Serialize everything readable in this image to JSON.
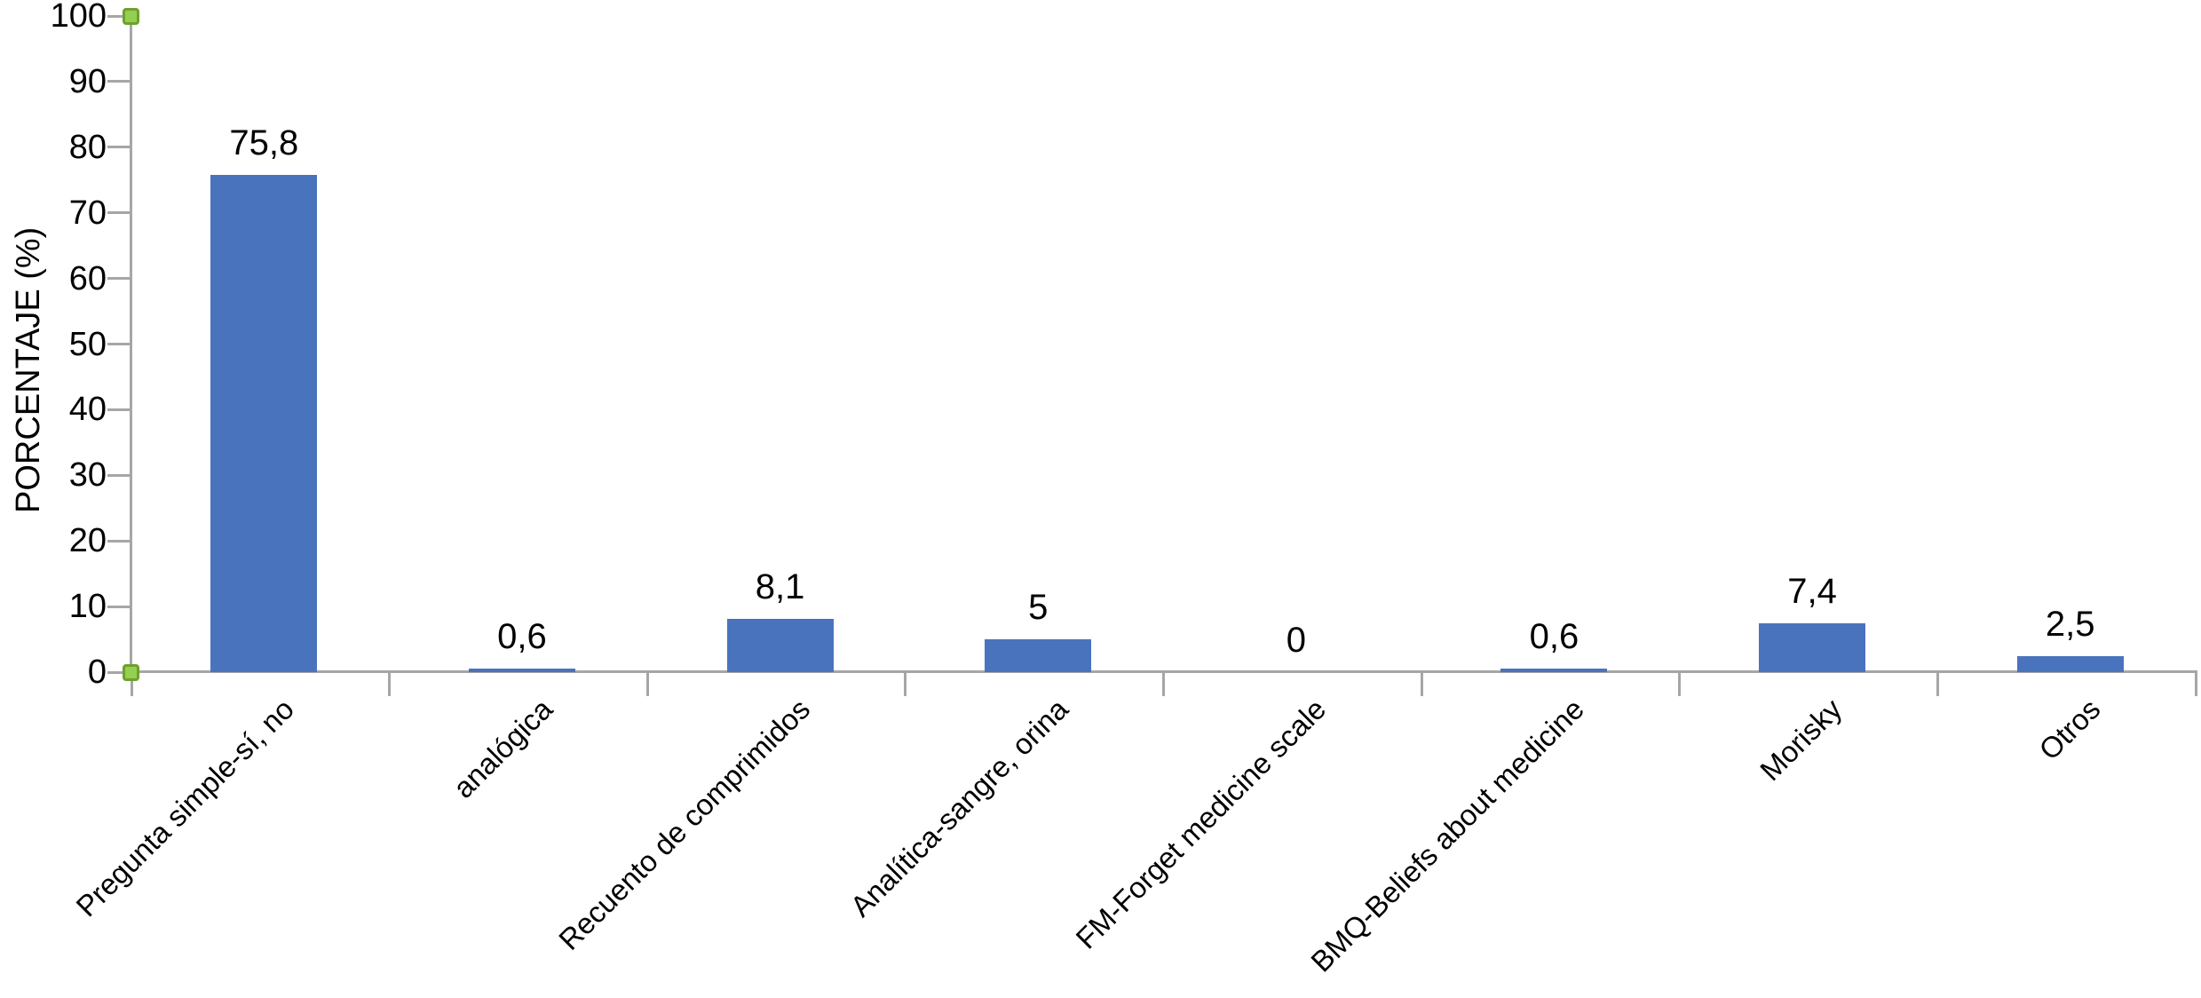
{
  "chart_data": {
    "type": "bar",
    "title": "",
    "xlabel": "",
    "ylabel": "PORCENTAJE (%)",
    "categories": [
      "Pregunta simple-sí, no",
      "analógica",
      "Recuento de comprimidos",
      "Analítica-sangre, orina",
      "FM-Forget medicine scale",
      "BMQ-Beliefs about medicine",
      "Morisky",
      "Otros"
    ],
    "values": [
      75.8,
      0.6,
      8.1,
      5,
      0,
      0.6,
      7.4,
      2.5
    ],
    "value_labels": [
      "75,8",
      "0,6",
      "8,1",
      "5",
      "0",
      "0,6",
      "7,4",
      "2,5"
    ],
    "y_ticks": [
      "0",
      "10",
      "20",
      "30",
      "40",
      "50",
      "60",
      "70",
      "80",
      "90",
      "100"
    ],
    "ylim": [
      0,
      100
    ],
    "grid": false,
    "legend": false,
    "colors": {
      "bar": "#4a73bd",
      "axis": "#a6a6a6",
      "text": "#000000",
      "marker_fill": "#92d050",
      "marker_border": "#6f9f2f",
      "background": "#ffffff"
    }
  }
}
